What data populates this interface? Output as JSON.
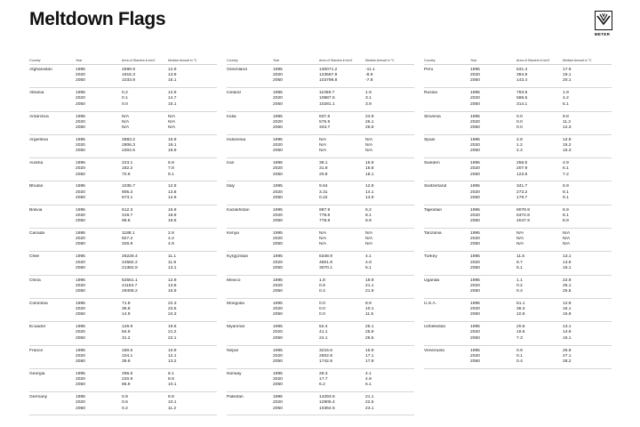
{
  "title": "Meltdown Flags",
  "logo": {
    "icon": "meter-logo-icon",
    "text": "METER"
  },
  "headers": {
    "country": "Country",
    "year": "Year",
    "area": "Area of Glaciers in km2",
    "temp": "Median Annual in °C"
  },
  "columns": [
    [
      {
        "name": "Afghanistan",
        "rows": [
          [
            "1995",
            "2598.9",
            "12.9"
          ],
          [
            "2020",
            "1915.3",
            "13.9"
          ],
          [
            "2050",
            "1033.9",
            "15.1"
          ]
        ]
      },
      {
        "name": "Albania",
        "rows": [
          [
            "1995",
            "0.2",
            "12.9"
          ],
          [
            "2020",
            "0.1",
            "14.7"
          ],
          [
            "2050",
            "0.0",
            "15.1"
          ]
        ]
      },
      {
        "name": "Antarctica",
        "rows": [
          [
            "1995",
            "N/A",
            "N/A"
          ],
          [
            "2020",
            "N/A",
            "N/A"
          ],
          [
            "2050",
            "N/A",
            "N/A"
          ]
        ]
      },
      {
        "name": "Argentina",
        "rows": [
          [
            "1995",
            "2883.2",
            "16.9"
          ],
          [
            "2020",
            "2806.3",
            "18.1"
          ],
          [
            "2050",
            "2304.5",
            "18.9"
          ]
        ]
      },
      {
        "name": "Austria",
        "rows": [
          [
            "1995",
            "223.1",
            "6.9"
          ],
          [
            "2020",
            "182.2",
            "7.8"
          ],
          [
            "2050",
            "70.9",
            "9.1"
          ]
        ]
      },
      {
        "name": "Bhutan",
        "rows": [
          [
            "1995",
            "1035.7",
            "12.9"
          ],
          [
            "2020",
            "905.3",
            "13.8"
          ],
          [
            "2050",
            "673.1",
            "14.9"
          ]
        ]
      },
      {
        "name": "Bolivia",
        "rows": [
          [
            "1995",
            "612.3",
            "16.9"
          ],
          [
            "2020",
            "319.7",
            "18.9"
          ],
          [
            "2050",
            "99.8",
            "19.5"
          ]
        ]
      },
      {
        "name": "Canada",
        "rows": [
          [
            "1995",
            "1188.1",
            "2.8"
          ],
          [
            "2020",
            "827.2",
            "4.2"
          ],
          [
            "2050",
            "326.9",
            "4.9"
          ]
        ]
      },
      {
        "name": "Chile",
        "rows": [
          [
            "1995",
            "26228.4",
            "11.1"
          ],
          [
            "2020",
            "24582.2",
            "11.9"
          ],
          [
            "2050",
            "21382.9",
            "13.1"
          ]
        ]
      },
      {
        "name": "China",
        "rows": [
          [
            "1995",
            "52551.1",
            "12.9"
          ],
          [
            "2020",
            "41153.7",
            "13.8"
          ],
          [
            "2050",
            "29408.2",
            "15.9"
          ]
        ]
      },
      {
        "name": "Colombia",
        "rows": [
          [
            "1995",
            "71.8",
            "22.3"
          ],
          [
            "2020",
            "36.8",
            "23.5"
          ],
          [
            "2050",
            "14.9",
            "24.3"
          ]
        ]
      },
      {
        "name": "Ecuador",
        "rows": [
          [
            "1995",
            "126.9",
            "19.5"
          ],
          [
            "2020",
            "84.9",
            "21.2"
          ],
          [
            "2050",
            "31.2",
            "22.1"
          ]
        ]
      },
      {
        "name": "France",
        "rows": [
          [
            "1995",
            "180.6",
            "10.9"
          ],
          [
            "2020",
            "104.1",
            "12.1"
          ],
          [
            "2050",
            "39.9",
            "13.2"
          ]
        ]
      },
      {
        "name": "Georgia",
        "rows": [
          [
            "1995",
            "296.6",
            "8.1"
          ],
          [
            "2020",
            "220.9",
            "8.9"
          ],
          [
            "2050",
            "85.9",
            "10.1"
          ]
        ]
      },
      {
        "name": "Germany",
        "rows": [
          [
            "1995",
            "0.9",
            "9.8"
          ],
          [
            "2020",
            "0.6",
            "10.1"
          ],
          [
            "2050",
            "0.2",
            "11.2"
          ]
        ]
      }
    ],
    [
      {
        "name": "Greenland",
        "rows": [
          [
            "1995",
            "130071.2",
            "-11.1"
          ],
          [
            "2020",
            "123567.8",
            "-8.9"
          ],
          [
            "2050",
            "103798.8",
            "-7.8"
          ]
        ]
      },
      {
        "name": "Iceland",
        "rows": [
          [
            "1995",
            "11059.7",
            "1.9"
          ],
          [
            "2020",
            "10887.5",
            "3.1"
          ],
          [
            "2050",
            "10281.1",
            "3.9"
          ]
        ]
      },
      {
        "name": "India",
        "rows": [
          [
            "1995",
            "837.6",
            "24.9"
          ],
          [
            "2020",
            "575.9",
            "26.1"
          ],
          [
            "2050",
            "343.7",
            "26.9"
          ]
        ]
      },
      {
        "name": "Indonesia",
        "rows": [
          [
            "1995",
            "N/A",
            "N/A"
          ],
          [
            "2020",
            "N/A",
            "N/A"
          ],
          [
            "2050",
            "N/A",
            "N/A"
          ]
        ]
      },
      {
        "name": "Iran",
        "rows": [
          [
            "1995",
            "39.1",
            "15.9"
          ],
          [
            "2020",
            "31.9",
            "16.8"
          ],
          [
            "2050",
            "20.8",
            "18.1"
          ]
        ]
      },
      {
        "name": "Italy",
        "rows": [
          [
            "1995",
            "9.64",
            "12.9"
          ],
          [
            "2020",
            "3.31",
            "14.1"
          ],
          [
            "2050",
            "0.22",
            "14.9"
          ]
        ]
      },
      {
        "name": "Kazakhstan",
        "rows": [
          [
            "1995",
            "987.9",
            "6.2"
          ],
          [
            "2020",
            "778.8",
            "8.1"
          ],
          [
            "2050",
            "778.8",
            "8.9"
          ]
        ]
      },
      {
        "name": "Kenya",
        "rows": [
          [
            "1995",
            "N/A",
            "N/A"
          ],
          [
            "2020",
            "N/A",
            "N/A"
          ],
          [
            "2050",
            "N/A",
            "N/A"
          ]
        ]
      },
      {
        "name": "Kyrgyzstan",
        "rows": [
          [
            "1995",
            "6348.9",
            "4.1"
          ],
          [
            "2020",
            "4801.9",
            "4.9"
          ],
          [
            "2050",
            "3070.1",
            "6.1"
          ]
        ]
      },
      {
        "name": "Mexico",
        "rows": [
          [
            "1995",
            "1.8",
            "19.9"
          ],
          [
            "2020",
            "0.9",
            "21.1"
          ],
          [
            "2050",
            "0.4",
            "21.9"
          ]
        ]
      },
      {
        "name": "Mongolia",
        "rows": [
          [
            "1995",
            "0.0",
            "8.9"
          ],
          [
            "2020",
            "0.0",
            "10.1"
          ],
          [
            "2050",
            "0.0",
            "11.5"
          ]
        ]
      },
      {
        "name": "Myanmar",
        "rows": [
          [
            "1995",
            "52.4",
            "25.1"
          ],
          [
            "2020",
            "41.1",
            "25.9"
          ],
          [
            "2050",
            "24.1",
            "26.5"
          ]
        ]
      },
      {
        "name": "Nepal",
        "rows": [
          [
            "1995",
            "3216.6",
            "15.9"
          ],
          [
            "2020",
            "2502.9",
            "17.1"
          ],
          [
            "2050",
            "1742.9",
            "17.9"
          ]
        ]
      },
      {
        "name": "Norway",
        "rows": [
          [
            "1995",
            "28.3",
            "4.1"
          ],
          [
            "2020",
            "17.7",
            "4.9"
          ],
          [
            "2050",
            "6.2",
            "6.1"
          ]
        ]
      },
      {
        "name": "Pakistan",
        "rows": [
          [
            "1995",
            "14293.5",
            "21.1"
          ],
          [
            "2020",
            "12905.4",
            "22.5"
          ],
          [
            "2050",
            "10364.5",
            "23.1"
          ]
        ]
      }
    ],
    [
      {
        "name": "Peru",
        "rows": [
          [
            "1995",
            "531.4",
            "17.9"
          ],
          [
            "2020",
            "394.9",
            "19.1"
          ],
          [
            "2050",
            "143.4",
            "20.1"
          ]
        ]
      },
      {
        "name": "Russia",
        "rows": [
          [
            "1995",
            "793.9",
            "1.9"
          ],
          [
            "2020",
            "586.5",
            "4.2"
          ],
          [
            "2050",
            "314.1",
            "5.1"
          ]
        ]
      },
      {
        "name": "Slovenia",
        "rows": [
          [
            "1995",
            "0.0",
            "9.8"
          ],
          [
            "2020",
            "0.0",
            "11.2"
          ],
          [
            "2050",
            "0.0",
            "12.3"
          ]
        ]
      },
      {
        "name": "Spain",
        "rows": [
          [
            "1995",
            "2.8",
            "12.9"
          ],
          [
            "2020",
            "1.2",
            "15.2"
          ],
          [
            "2050",
            "2.4",
            "15.3"
          ]
        ]
      },
      {
        "name": "Sweden",
        "rows": [
          [
            "1995",
            "256.5",
            "4.9"
          ],
          [
            "2020",
            "207.9",
            "6.1"
          ],
          [
            "2050",
            "123.8",
            "7.2"
          ]
        ]
      },
      {
        "name": "Switzerland",
        "rows": [
          [
            "1995",
            "341.7",
            "6.9"
          ],
          [
            "2020",
            "273.2",
            "8.1"
          ],
          [
            "2050",
            "179.7",
            "9.1"
          ]
        ]
      },
      {
        "name": "Tajikistan",
        "rows": [
          [
            "1995",
            "8078.9",
            "6.9"
          ],
          [
            "2020",
            "6372.8",
            "8.1"
          ],
          [
            "2050",
            "4047.9",
            "8.9"
          ]
        ]
      },
      {
        "name": "Tanzania",
        "rows": [
          [
            "1995",
            "N/A",
            "N/A"
          ],
          [
            "2020",
            "N/A",
            "N/A"
          ],
          [
            "2050",
            "N/A",
            "N/A"
          ]
        ]
      },
      {
        "name": "Turkey",
        "rows": [
          [
            "1995",
            "11.5",
            "13.1"
          ],
          [
            "2020",
            "9.7",
            "13.9"
          ],
          [
            "2050",
            "5.1",
            "15.1"
          ]
        ]
      },
      {
        "name": "Uganda",
        "rows": [
          [
            "1995",
            "1.1",
            "22.9"
          ],
          [
            "2020",
            "0.2",
            "25.1"
          ],
          [
            "2050",
            "0.4",
            "25.5"
          ]
        ]
      },
      {
        "name": "U.S.A.",
        "rows": [
          [
            "1995",
            "61.1",
            "12.9"
          ],
          [
            "2020",
            "36.3",
            "15.1"
          ],
          [
            "2050",
            "10.8",
            "15.9"
          ]
        ]
      },
      {
        "name": "Uzbekistan",
        "rows": [
          [
            "1995",
            "20.6",
            "13.1"
          ],
          [
            "2020",
            "19.6",
            "14.9"
          ],
          [
            "2050",
            "7.3",
            "16.1"
          ]
        ]
      },
      {
        "name": "Venezuela",
        "rows": [
          [
            "1995",
            "0.9",
            "25.9"
          ],
          [
            "2020",
            "0.1",
            "27.1"
          ],
          [
            "2050",
            "0.4",
            "28.2"
          ]
        ]
      }
    ]
  ]
}
